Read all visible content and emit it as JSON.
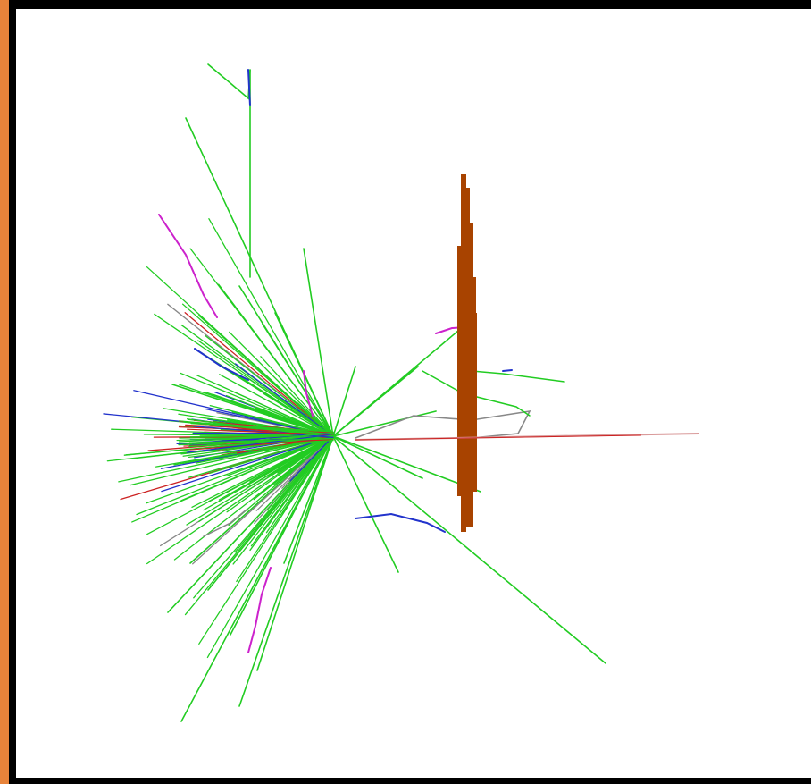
{
  "frame": {
    "accent_color": "#e8833a",
    "border_color": "#000000",
    "background_color": "#ffffff"
  },
  "scene": {
    "description_icon": "particle-shower-event-display",
    "colors": {
      "green_tracks": "#22cc22",
      "blue_tracks": "#2233cc",
      "red_tracks": "#cc2222",
      "gray_tracks": "#888888",
      "magenta_tracks": "#cc22cc",
      "detector_plate": "#a84300",
      "beam_line": "#d99a9a"
    }
  }
}
